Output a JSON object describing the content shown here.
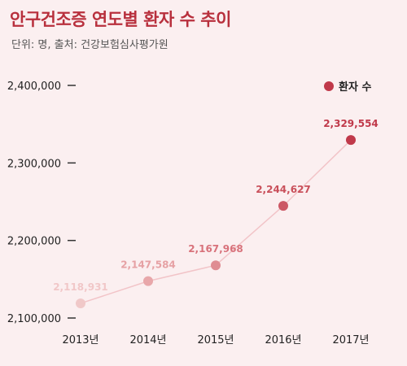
{
  "title": "안구건조증 연도별 환자 수 추이",
  "subtitle": "단위: 명, 출처: 건강보험심사평가원",
  "colors": {
    "background": "#fbeff0",
    "title": "#b8303d",
    "line": "#f2c4c8",
    "points": [
      "#f0c8c8",
      "#e8a7aa",
      "#df8c92",
      "#cc5865",
      "#c0394a"
    ],
    "labels": [
      "#f1c7c8",
      "#e6a1a4",
      "#d8727b",
      "#c9505b",
      "#c0394a"
    ]
  },
  "chart_data": {
    "type": "line",
    "categories": [
      "2013년",
      "2014년",
      "2015년",
      "2016년",
      "2017년"
    ],
    "series": [
      {
        "name": "환자 수",
        "values": [
          2118931,
          2147584,
          2167968,
          2244627,
          2329554
        ]
      }
    ],
    "data_labels": [
      "2,118,931",
      "2,147,584",
      "2,167,968",
      "2,244,627",
      "2,329,554"
    ],
    "yticks": [
      2100000,
      2200000,
      2300000,
      2400000
    ],
    "ytick_labels": [
      "2,100,000",
      "2,200,000",
      "2,300,000",
      "2,400,000"
    ],
    "ylim": [
      2100000,
      2400000
    ],
    "legend_position": "top-right",
    "grid": false
  }
}
